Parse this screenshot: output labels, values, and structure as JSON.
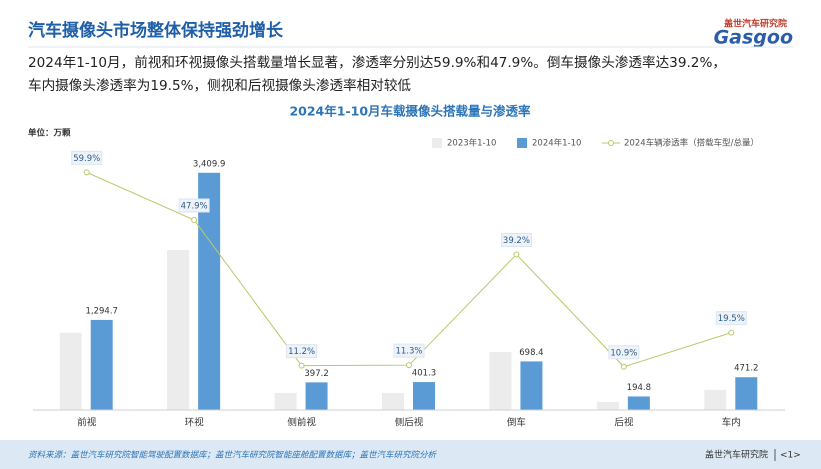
{
  "header": {
    "title": "汽车摄像头市场整体保持强劲增长",
    "logo_cn": "盖世汽车研究院",
    "logo_en": "Gasgoo"
  },
  "body": {
    "lines": [
      "2024年1-10月，前视和环视摄像头搭载量增长显著，渗透率分别达59.9%和47.9%。倒车摄像头渗透率达39.2%，",
      "车内摄像头渗透率为19.5%，侧视和后视摄像头渗透率相对较低"
    ]
  },
  "chart_data": {
    "type": "bar",
    "title": "2024年1-10月车载摄像头搭载量与渗透率",
    "unit": "单位：万颗",
    "categories": [
      "前视",
      "环视",
      "侧前视",
      "侧后视",
      "倒车",
      "后视",
      "车内"
    ],
    "ylim": [
      0,
      3450
    ],
    "y2lim": [
      0,
      60.5
    ],
    "legend": "top-right",
    "series": [
      {
        "name": "2023年1-10",
        "color": "#ececec",
        "values": [
          1110,
          2300,
          245,
          245,
          835,
          115,
          290
        ]
      },
      {
        "name": "2024年1-10",
        "color": "#5b9bd5",
        "values": [
          1294.7,
          3409.9,
          397.2,
          401.3,
          698.4,
          194.8,
          471.2
        ],
        "value_labels": [
          "1,294.7",
          "3,409.9",
          "397.2",
          "401.3",
          "698.4",
          "194.8",
          "471.2"
        ]
      },
      {
        "name": "2024车辆渗透率（搭载车型/总量）",
        "type": "line",
        "axis": "y2",
        "color": "#b8c96a",
        "values": [
          59.9,
          47.9,
          11.2,
          11.3,
          39.2,
          10.9,
          19.5
        ],
        "value_labels": [
          "59.9%",
          "47.9%",
          "11.2%",
          "11.3%",
          "39.2%",
          "10.9%",
          "19.5%"
        ]
      }
    ]
  },
  "footer": {
    "source": "资料来源：盖世汽车研究院智能驾驶配置数据库；盖世汽车研究院智能座舱配置数据库；盖世汽车研究院分析",
    "org": "盖世汽车研究院",
    "page": "<1>"
  }
}
